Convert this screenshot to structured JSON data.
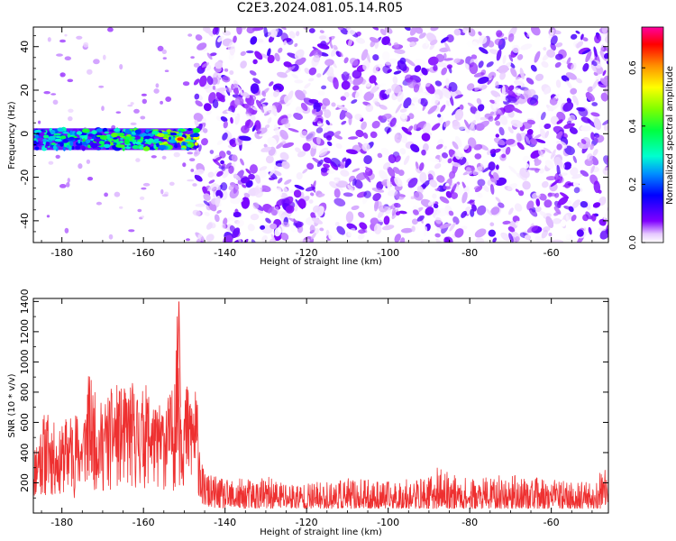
{
  "figure": {
    "title": "C2E3.2024.081.05.14.R05"
  },
  "chart_data": [
    {
      "type": "heatmap",
      "title": "C2E3.2024.081.05.14.R05",
      "xlabel": "Height of straight line (km)",
      "ylabel": "Frequency (Hz)",
      "xlim": [
        -187,
        -46
      ],
      "ylim": [
        -50,
        49
      ],
      "x_ticks": [
        -180,
        -160,
        -140,
        -120,
        -100,
        -80,
        -60
      ],
      "x_tick_labels": [
        "-180",
        "-160",
        "-140",
        "-120",
        "-100",
        "-80",
        "-60"
      ],
      "y_ticks": [
        -40,
        -20,
        0,
        20,
        40
      ],
      "y_tick_labels": [
        "-40",
        "-20",
        "0",
        "20",
        "40"
      ],
      "colorbar": {
        "label": "Normalized spectral amplitude",
        "range": [
          0,
          0.74
        ],
        "ticks": [
          0.0,
          0.2,
          0.4,
          0.6
        ],
        "tick_labels": [
          "0.0",
          "0.2",
          "0.4",
          "0.6"
        ],
        "colormap": "rainbow (white-violet-blue-cyan-green-yellow-red-magenta)"
      },
      "features": {
        "signal_band": {
          "x_range": [
            -187,
            -147
          ],
          "frequency_center": -2.5,
          "frequency_halfwidth": 5,
          "amplitude": [
            0.15,
            0.62
          ]
        },
        "noise_onset_x": -147,
        "noise_region": {
          "x_range": [
            -147,
            -46
          ],
          "frequency_range": [
            -50,
            49
          ],
          "amplitude": [
            0.0,
            0.12
          ]
        }
      }
    },
    {
      "type": "line",
      "xlabel": "Height of straight line (km)",
      "ylabel": "SNR (10 * v/v)",
      "xlim": [
        -187,
        -46
      ],
      "ylim": [
        0,
        1420
      ],
      "x_ticks": [
        -180,
        -160,
        -140,
        -120,
        -100,
        -80,
        -60
      ],
      "x_tick_labels": [
        "-180",
        "-160",
        "-140",
        "-120",
        "-100",
        "-80",
        "-60"
      ],
      "y_ticks": [
        200,
        400,
        600,
        800,
        1000,
        1200,
        1400
      ],
      "y_tick_labels": [
        "200",
        "400",
        "600",
        "800",
        "1000",
        "1200",
        "1400"
      ],
      "color": "#ee3030",
      "x": [
        -187,
        -185,
        -183,
        -181,
        -179,
        -177,
        -175,
        -173.5,
        -173,
        -171,
        -169,
        -167,
        -165,
        -163,
        -161,
        -159,
        -157,
        -155,
        -153,
        -151.5,
        -151,
        -150.5,
        -149,
        -147,
        -146,
        -145.5,
        -144,
        -140,
        -130,
        -120,
        -110,
        -100,
        -90,
        -88,
        -80,
        -70,
        -60,
        -50,
        -47,
        -46
      ],
      "y": [
        420,
        650,
        690,
        520,
        640,
        700,
        620,
        930,
        900,
        720,
        780,
        860,
        820,
        880,
        800,
        860,
        700,
        760,
        820,
        1400,
        1050,
        800,
        880,
        820,
        500,
        300,
        260,
        220,
        240,
        200,
        230,
        210,
        240,
        300,
        220,
        260,
        220,
        200,
        300,
        220
      ],
      "y_floor": [
        80,
        100,
        90,
        110,
        120,
        100,
        130,
        160,
        150,
        140,
        120,
        150,
        160,
        140,
        150,
        170,
        160,
        150,
        140,
        180,
        160,
        150,
        140,
        120,
        80,
        60,
        40,
        30,
        30,
        30,
        30,
        30,
        30,
        30,
        30,
        30,
        30,
        30,
        30,
        30
      ]
    }
  ]
}
